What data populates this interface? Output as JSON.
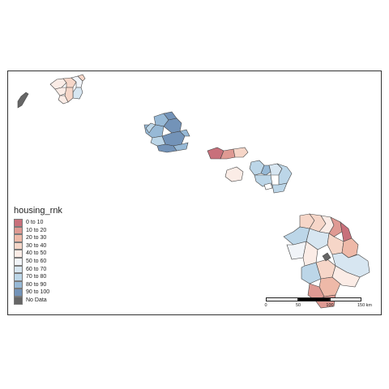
{
  "legend": {
    "title": "housing_rnk",
    "items": [
      {
        "label": "0 to 10",
        "color": "#c8707b"
      },
      {
        "label": "10 to 20",
        "color": "#df9a93"
      },
      {
        "label": "20 to 30",
        "color": "#eeb9a8"
      },
      {
        "label": "30 to 40",
        "color": "#f6d6c8"
      },
      {
        "label": "40 to 50",
        "color": "#fbece6"
      },
      {
        "label": "50 to 60",
        "color": "#f1f4f8"
      },
      {
        "label": "60 to 70",
        "color": "#d7e6f1"
      },
      {
        "label": "70 to 80",
        "color": "#bcd6e8"
      },
      {
        "label": "80 to 90",
        "color": "#97b9d6"
      },
      {
        "label": "90 to 100",
        "color": "#7393b8"
      },
      {
        "label": "No Data",
        "color": "#666666"
      }
    ]
  },
  "scale_bar": {
    "ticks": [
      "0",
      "50",
      "100",
      "150 km"
    ]
  }
}
